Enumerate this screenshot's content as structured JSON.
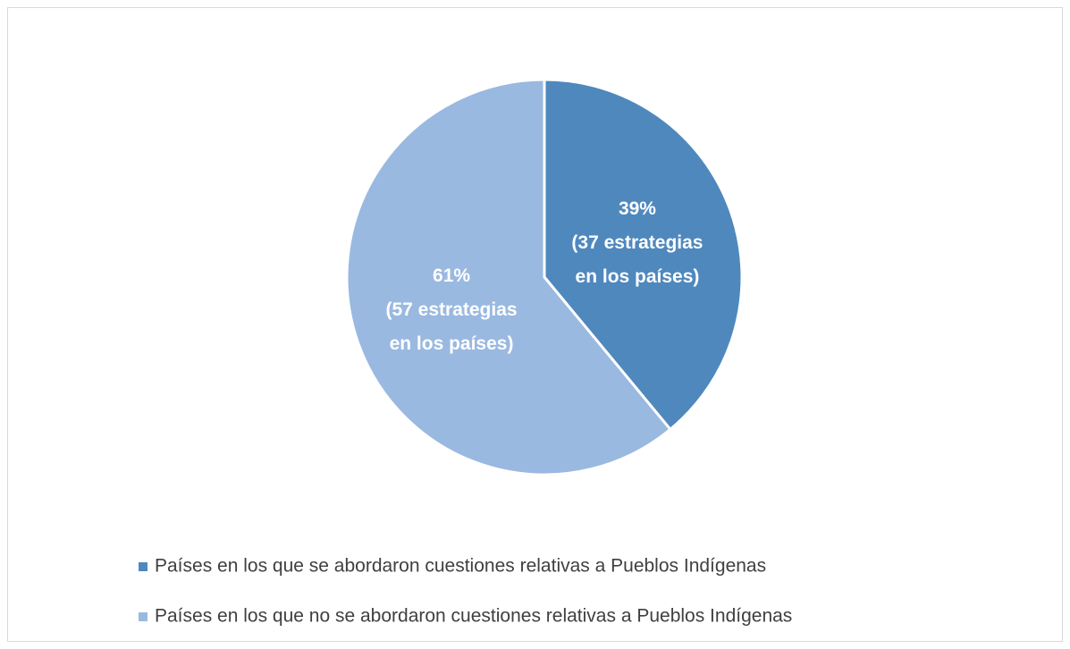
{
  "chart_data": {
    "type": "pie",
    "categories": [
      "Países en los que se abordaron cuestiones relativas a Pueblos Indígenas",
      "Países en los que no se abordaron cuestiones relativas a Pueblos Indígenas"
    ],
    "values": [
      39,
      61
    ],
    "value_labels": [
      "39%",
      "61%"
    ],
    "slice_notes": [
      [
        "(37 estrategias",
        "en los países)"
      ],
      [
        "(57 estrategias",
        "en los países)"
      ]
    ],
    "colors": [
      "#4f88bd",
      "#9ab9e0"
    ],
    "legend": "bottom"
  }
}
